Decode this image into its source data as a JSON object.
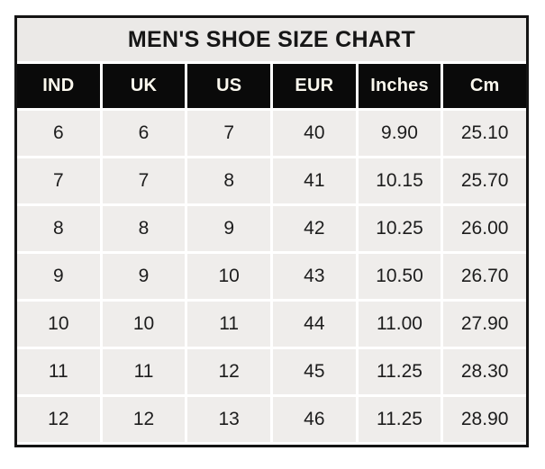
{
  "chart_data": {
    "type": "table",
    "title": "MEN'S SHOE SIZE CHART",
    "columns": [
      "IND",
      "UK",
      "US",
      "EUR",
      "Inches",
      "Cm"
    ],
    "rows": [
      [
        "6",
        "6",
        "7",
        "40",
        "9.90",
        "25.10"
      ],
      [
        "7",
        "7",
        "8",
        "41",
        "10.15",
        "25.70"
      ],
      [
        "8",
        "8",
        "9",
        "42",
        "10.25",
        "26.00"
      ],
      [
        "9",
        "9",
        "10",
        "43",
        "10.50",
        "26.70"
      ],
      [
        "10",
        "10",
        "11",
        "44",
        "11.00",
        "27.90"
      ],
      [
        "11",
        "11",
        "12",
        "45",
        "11.25",
        "28.30"
      ],
      [
        "12",
        "12",
        "13",
        "46",
        "11.25",
        "28.90"
      ]
    ]
  },
  "colors": {
    "border": "#141414",
    "title_bg": "#ebe9e7",
    "header_bg": "#0a0a0a",
    "header_text": "#fbf8ee",
    "cell_bg": "#efedeb",
    "cell_text": "#1d1d1d",
    "gap": "#ffffff"
  }
}
